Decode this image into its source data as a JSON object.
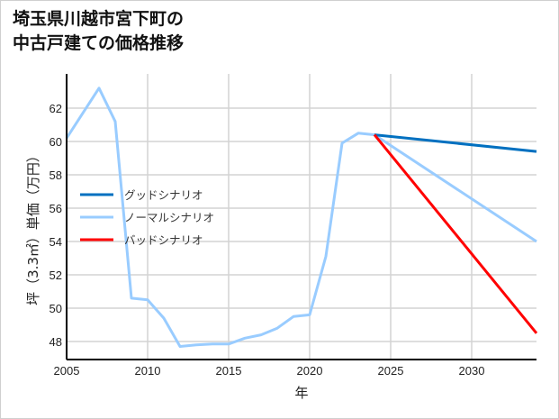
{
  "title_line1": "埼玉県川越市宮下町の",
  "title_line2": "中古戸建ての価格推移",
  "colors": {
    "good": "#0070c0",
    "normal": "#99ccff",
    "bad": "#ff0000",
    "grid": "#d3d3d3",
    "axis": "#000000"
  },
  "chart_data": {
    "type": "line",
    "title": "埼玉県川越市宮下町の中古戸建ての価格推移",
    "xlabel": "年",
    "ylabel": "坪（3.3㎡）単価（万円）",
    "xlim": [
      2005,
      2034
    ],
    "ylim": [
      47,
      63.8
    ],
    "xticks": [
      2005,
      2010,
      2015,
      2020,
      2025,
      2030
    ],
    "yticks": [
      48,
      50,
      52,
      54,
      56,
      58,
      60,
      62
    ],
    "grid": true,
    "legend_position": "center-left",
    "series": [
      {
        "name": "グッドシナリオ",
        "color": "#0070c0",
        "x": [
          2024,
          2034
        ],
        "values": [
          60.4,
          59.4
        ]
      },
      {
        "name": "ノーマルシナリオ",
        "color": "#99ccff",
        "x": [
          2005,
          2007,
          2008,
          2009,
          2010,
          2011,
          2012,
          2013,
          2014,
          2015,
          2016,
          2017,
          2018,
          2019,
          2020,
          2021,
          2022,
          2023,
          2024,
          2034
        ],
        "values": [
          60.2,
          63.2,
          61.2,
          50.6,
          50.5,
          49.4,
          47.7,
          47.8,
          47.85,
          47.85,
          48.2,
          48.4,
          48.8,
          49.5,
          49.6,
          53.1,
          59.9,
          60.5,
          60.4,
          54.0
        ]
      },
      {
        "name": "バッドシナリオ",
        "color": "#ff0000",
        "x": [
          2024,
          2034
        ],
        "values": [
          60.4,
          48.5
        ]
      }
    ]
  }
}
